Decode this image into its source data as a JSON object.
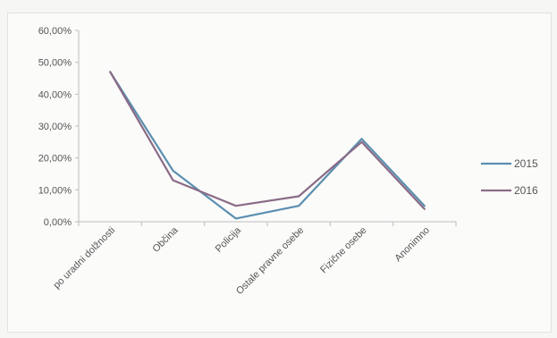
{
  "chart_data": {
    "type": "line",
    "categories": [
      "po uradni dolžnosti",
      "Občina",
      "Policija",
      "Ostale pravne osebe",
      "Fizične osebe",
      "Anonimno"
    ],
    "series": [
      {
        "name": "2015",
        "values": [
          47,
          16,
          1,
          5,
          26,
          5
        ],
        "color": "#5b8fb0"
      },
      {
        "name": "2016",
        "values": [
          47,
          13,
          5,
          8,
          25,
          4
        ],
        "color": "#8a6b86"
      }
    ],
    "y_ticks": [
      "0,00%",
      "10,00%",
      "20,00%",
      "30,00%",
      "40,00%",
      "50,00%",
      "60,00%"
    ],
    "ylim": [
      0,
      60
    ],
    "grid": false,
    "legend_position": "right"
  }
}
